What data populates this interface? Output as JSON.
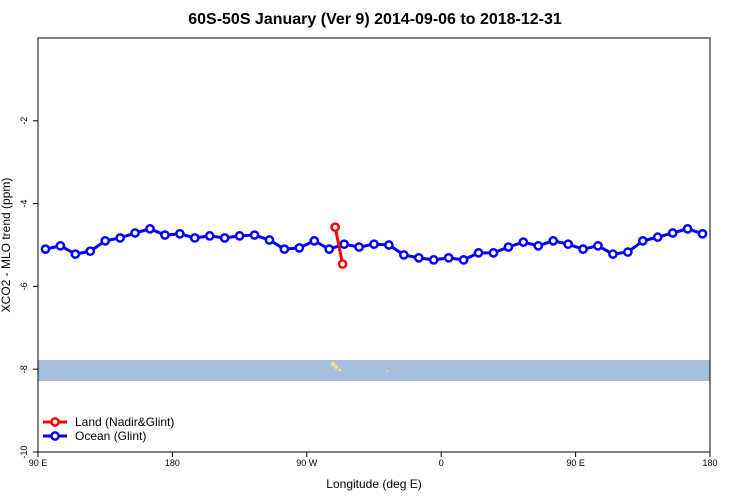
{
  "chart_data": {
    "type": "line",
    "title": "60S-50S January (Ver 9)   2014-09-06 to 2018-12-31",
    "x_label": "Longitude (deg E)",
    "y_label": "XCO2 - MLO trend (ppm)",
    "xlim": [
      90,
      540
    ],
    "ylim": [
      -10,
      0
    ],
    "xticks": [
      {
        "value": 90,
        "label": "90 E"
      },
      {
        "value": 180,
        "label": "180"
      },
      {
        "value": 270,
        "label": "90 W"
      },
      {
        "value": 360,
        "label": "0"
      },
      {
        "value": 450,
        "label": "90 E"
      },
      {
        "value": 540,
        "label": "180"
      }
    ],
    "yticks": [
      -10,
      -8,
      -6,
      -4,
      -2
    ],
    "legend_position": "bottom-left",
    "series": [
      {
        "name": "Land (Nadir&Glint)",
        "color": "#ff0000",
        "x": [
          289,
          294
        ],
        "values": [
          -4.57,
          -5.46
        ]
      },
      {
        "name": "Ocean (Glint)",
        "color": "#0000ff",
        "x": [
          95,
          105,
          115,
          125,
          135,
          145,
          155,
          165,
          175,
          185,
          195,
          205,
          215,
          225,
          235,
          245,
          255,
          265,
          275,
          285,
          295,
          305,
          315,
          325,
          335,
          345,
          355,
          365,
          375,
          385,
          395,
          405,
          415,
          425,
          435,
          445,
          455,
          465,
          475,
          485,
          495,
          505,
          515,
          525,
          535
        ],
        "values": [
          -5.1,
          -5.02,
          -5.22,
          -5.15,
          -4.9,
          -4.83,
          -4.71,
          -4.61,
          -4.76,
          -4.73,
          -4.83,
          -4.78,
          -4.83,
          -4.78,
          -4.76,
          -4.88,
          -5.1,
          -5.07,
          -4.9,
          -5.1,
          -4.98,
          -5.05,
          -4.98,
          -5.0,
          -5.24,
          -5.31,
          -5.36,
          -5.31,
          -5.36,
          -5.19,
          -5.19,
          -5.05,
          -4.93,
          -5.02,
          -4.9,
          -4.98,
          -5.1,
          -5.02,
          -5.22,
          -5.17,
          -4.9,
          -4.81,
          -4.71,
          -4.61,
          -4.73
        ]
      }
    ]
  }
}
